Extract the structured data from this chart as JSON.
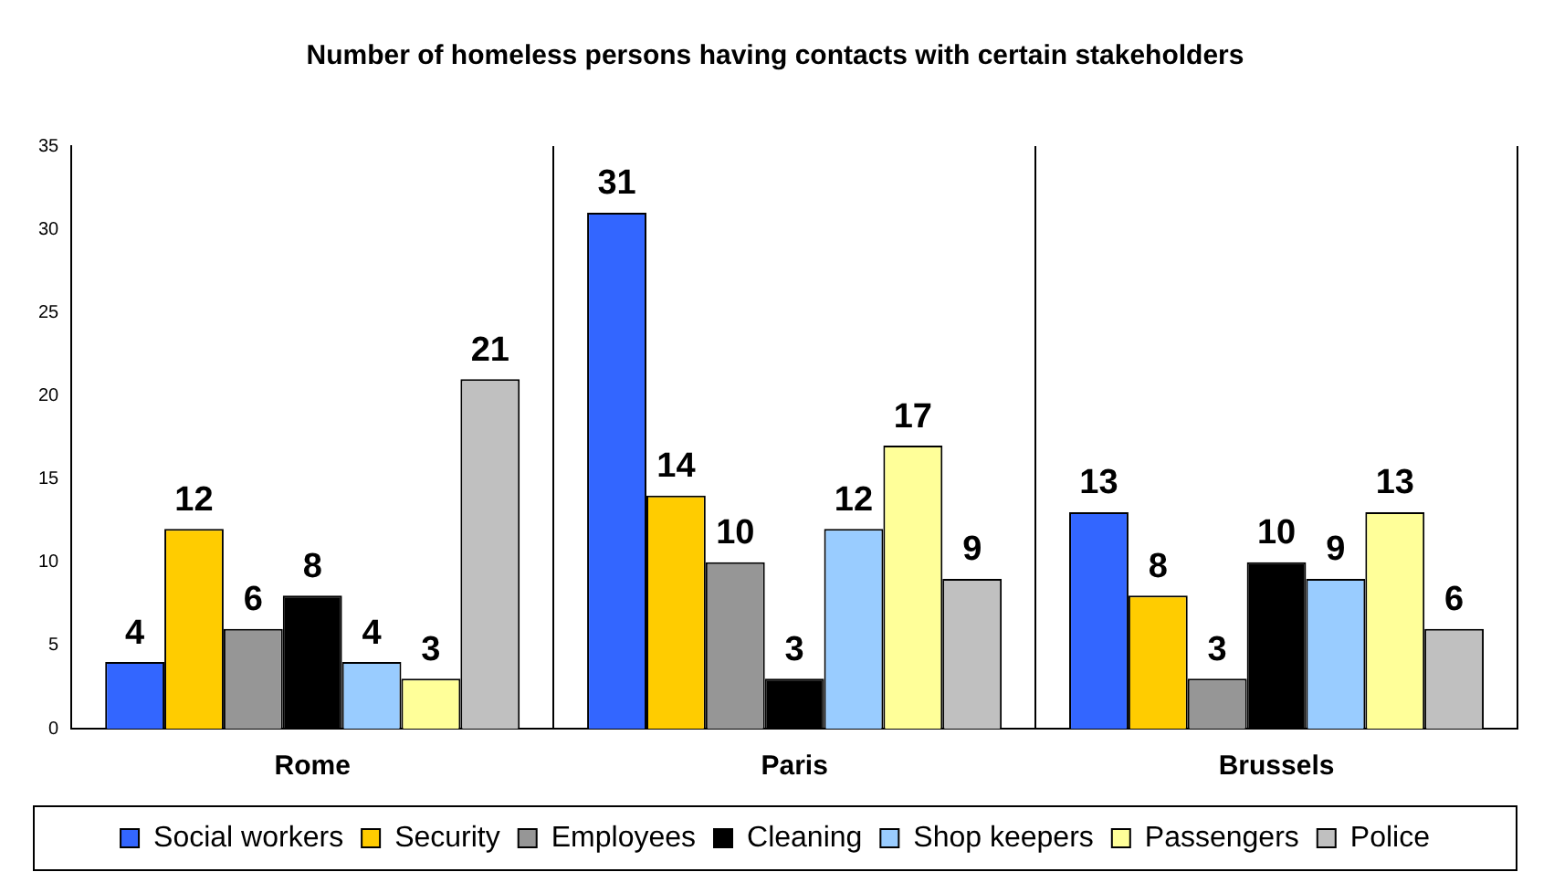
{
  "chart_data": {
    "type": "bar",
    "title": "Number of homeless persons having contacts with certain stakeholders",
    "categories": [
      "Rome",
      "Paris",
      "Brussels"
    ],
    "series": [
      {
        "name": "Social workers",
        "color": "#3366ff",
        "values": [
          4,
          31,
          13
        ]
      },
      {
        "name": "Security",
        "color": "#ffcc00",
        "values": [
          12,
          14,
          8
        ]
      },
      {
        "name": "Employees",
        "color": "#969696",
        "values": [
          6,
          10,
          3
        ]
      },
      {
        "name": "Cleaning",
        "color": "#000000",
        "values": [
          8,
          3,
          10
        ]
      },
      {
        "name": "Shop keepers",
        "color": "#99ccff",
        "values": [
          4,
          12,
          9
        ]
      },
      {
        "name": "Passengers",
        "color": "#ffff99",
        "values": [
          3,
          17,
          13
        ]
      },
      {
        "name": "Police",
        "color": "#c0c0c0",
        "values": [
          21,
          9,
          6
        ]
      }
    ],
    "ylim": [
      0,
      35
    ],
    "yticks": [
      0,
      5,
      10,
      15,
      20,
      25,
      30,
      35
    ],
    "grid": "x",
    "legend": "bottom",
    "data_labels": true
  }
}
